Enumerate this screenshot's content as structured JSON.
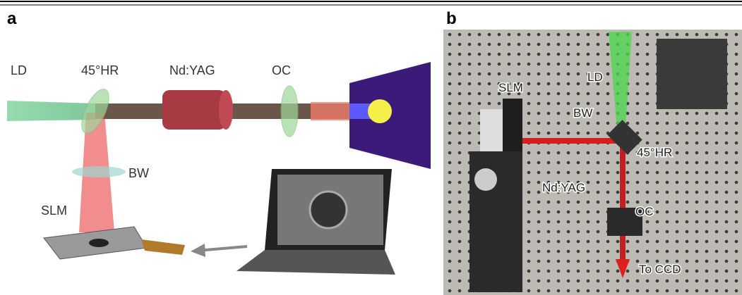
{
  "panel_a": {
    "label": "a",
    "labels": {
      "ld": "LD",
      "hr": "45°HR",
      "gain": "Nd:YAG",
      "oc": "OC",
      "bw": "BW",
      "slm": "SLM"
    }
  },
  "panel_b": {
    "label": "b",
    "labels": {
      "slm": "SLM",
      "ld": "LD",
      "bw": "BW",
      "hr": "45°HR",
      "gain": "Nd:YAG",
      "oc": "OC",
      "ccd": "To CCD"
    }
  }
}
